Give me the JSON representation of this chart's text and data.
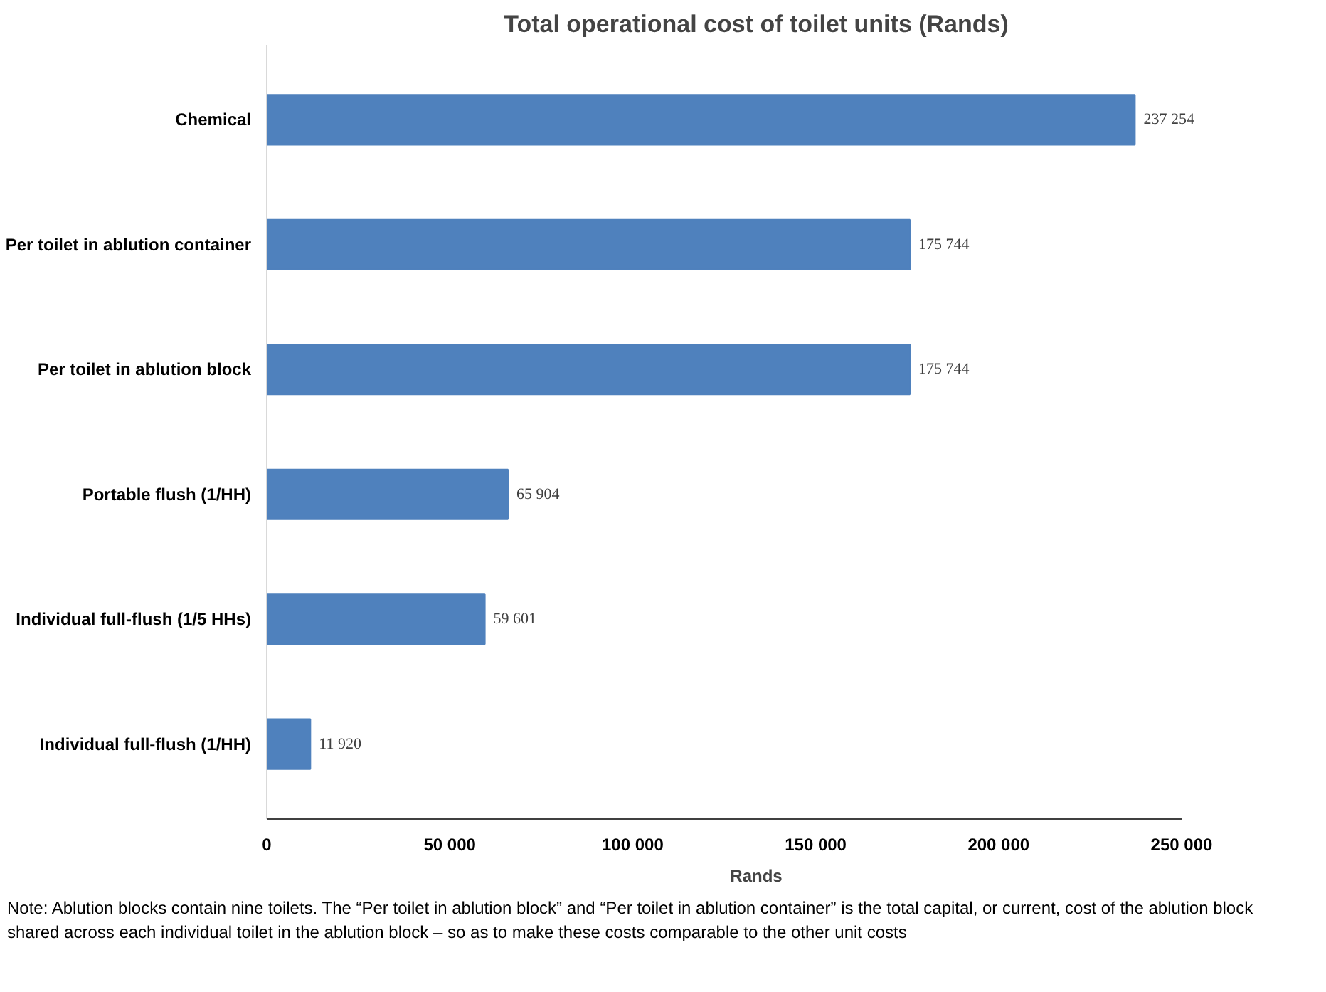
{
  "chart_data": {
    "type": "bar",
    "orientation": "horizontal",
    "title": "Total operational cost of toilet units (Rands)",
    "xlabel": "Rands",
    "categories": [
      "Chemical",
      "Per toilet in ablution container",
      "Per toilet in ablution block",
      "Portable flush (1/HH)",
      "Individual full-flush (1/5 HHs)",
      "Individual full-flush (1/HH)"
    ],
    "values": [
      237254,
      175744,
      175744,
      65904,
      59601,
      11920
    ],
    "value_labels": [
      "237 254",
      "175 744",
      "175 744",
      "65 904",
      "59 601",
      "11 920"
    ],
    "color": "#4f81bd",
    "xlim": [
      0,
      250000
    ],
    "xticks": [
      0,
      {
        "value": 50000,
        "label": "50 000"
      },
      {
        "value": 100000,
        "label": "100 000"
      },
      {
        "value": 150000,
        "label": "150 000"
      },
      {
        "value": 200000,
        "label": "200 000"
      },
      {
        "value": 250000,
        "label": "250 000"
      }
    ],
    "grid": false,
    "annotations": [
      "Note: Ablution blocks contain nine toilets. The “Per toilet in ablution block” and “Per toilet in ablution container” is the total capital, or current, cost of the ablution block shared across each individual toilet in the ablution block – so as to make these costs comparable to the other unit costs"
    ]
  }
}
